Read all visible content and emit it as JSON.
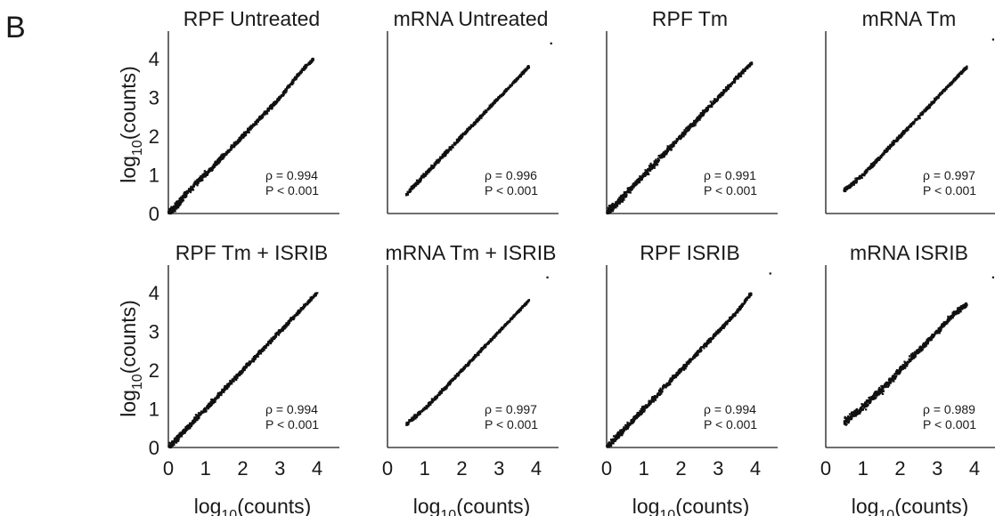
{
  "figure": {
    "panel_label": "B"
  },
  "chart_data": [
    {
      "type": "scatter",
      "title": "RPF Untreated",
      "stats": {
        "rho": "ρ = 0.994",
        "p": "P < 0.001"
      },
      "points": [
        [
          0,
          0
        ],
        [
          0.15,
          0.12
        ],
        [
          0.3,
          0.3
        ],
        [
          0.5,
          0.55
        ],
        [
          1,
          1.02
        ],
        [
          1.5,
          1.5
        ],
        [
          2,
          2
        ],
        [
          2.5,
          2.5
        ],
        [
          3,
          3
        ],
        [
          3.5,
          3.6
        ],
        [
          3.9,
          4.0
        ]
      ],
      "spread": 0.09,
      "outliers": []
    },
    {
      "type": "scatter",
      "title": "mRNA Untreated",
      "stats": {
        "rho": "ρ = 0.996",
        "p": "P < 0.001"
      },
      "points": [
        [
          0.5,
          0.5
        ],
        [
          1,
          1.0
        ],
        [
          1.5,
          1.5
        ],
        [
          2,
          2
        ],
        [
          2.5,
          2.5
        ],
        [
          3,
          3
        ],
        [
          3.5,
          3.5
        ],
        [
          3.8,
          3.8
        ]
      ],
      "spread": 0.07,
      "outliers": [
        [
          4.4,
          4.4
        ]
      ]
    },
    {
      "type": "scatter",
      "title": "RPF Tm",
      "stats": {
        "rho": "ρ = 0.991",
        "p": "P < 0.001"
      },
      "points": [
        [
          0,
          0
        ],
        [
          0.2,
          0.2
        ],
        [
          0.5,
          0.5
        ],
        [
          1,
          1
        ],
        [
          1.5,
          1.5
        ],
        [
          2,
          2
        ],
        [
          2.5,
          2.5
        ],
        [
          3,
          3
        ],
        [
          3.5,
          3.5
        ],
        [
          3.9,
          3.9
        ]
      ],
      "spread": 0.11,
      "outliers": []
    },
    {
      "type": "scatter",
      "title": "mRNA Tm",
      "stats": {
        "rho": "ρ = 0.997",
        "p": "P < 0.001"
      },
      "points": [
        [
          0.5,
          0.6
        ],
        [
          1,
          1
        ],
        [
          1.5,
          1.5
        ],
        [
          2,
          2
        ],
        [
          2.5,
          2.5
        ],
        [
          3,
          3
        ],
        [
          3.5,
          3.5
        ],
        [
          3.8,
          3.8
        ]
      ],
      "spread": 0.07,
      "outliers": [
        [
          4.5,
          4.5
        ]
      ]
    },
    {
      "type": "scatter",
      "title": "RPF Tm + ISRIB",
      "stats": {
        "rho": "ρ = 0.994",
        "p": "P < 0.001"
      },
      "points": [
        [
          0,
          0
        ],
        [
          0.3,
          0.3
        ],
        [
          0.6,
          0.6
        ],
        [
          1,
          1
        ],
        [
          1.5,
          1.5
        ],
        [
          2,
          2
        ],
        [
          2.5,
          2.5
        ],
        [
          3,
          3
        ],
        [
          3.5,
          3.5
        ],
        [
          4,
          4
        ]
      ],
      "spread": 0.09,
      "outliers": []
    },
    {
      "type": "scatter",
      "title": "mRNA Tm + ISRIB",
      "stats": {
        "rho": "ρ = 0.997",
        "p": "P < 0.001"
      },
      "points": [
        [
          0.5,
          0.6
        ],
        [
          1,
          1
        ],
        [
          1.5,
          1.5
        ],
        [
          2,
          2
        ],
        [
          2.5,
          2.5
        ],
        [
          3,
          3
        ],
        [
          3.5,
          3.5
        ],
        [
          3.8,
          3.8
        ]
      ],
      "spread": 0.06,
      "outliers": [
        [
          4.3,
          4.4
        ]
      ]
    },
    {
      "type": "scatter",
      "title": "RPF ISRIB",
      "stats": {
        "rho": "ρ = 0.994",
        "p": "P < 0.001"
      },
      "points": [
        [
          0,
          0
        ],
        [
          0.3,
          0.3
        ],
        [
          0.6,
          0.6
        ],
        [
          1,
          1
        ],
        [
          1.5,
          1.5
        ],
        [
          2,
          2
        ],
        [
          2.5,
          2.5
        ],
        [
          3,
          3
        ],
        [
          3.5,
          3.5
        ],
        [
          3.9,
          4.0
        ]
      ],
      "spread": 0.09,
      "outliers": [
        [
          4.4,
          4.5
        ]
      ]
    },
    {
      "type": "scatter",
      "title": "mRNA ISRIB",
      "stats": {
        "rho": "ρ = 0.989",
        "p": "P < 0.001"
      },
      "points": [
        [
          0.5,
          0.65
        ],
        [
          1,
          1.05
        ],
        [
          1.5,
          1.5
        ],
        [
          2,
          2
        ],
        [
          2.5,
          2.5
        ],
        [
          3,
          3
        ],
        [
          3.5,
          3.5
        ],
        [
          3.8,
          3.7
        ]
      ],
      "spread": 0.13,
      "outliers": [
        [
          4.5,
          4.4
        ]
      ]
    }
  ],
  "axes": {
    "xlabel": {
      "base": "log",
      "sub": "10",
      "rest": "(counts)"
    },
    "ylabel": {
      "base": "log",
      "sub": "10",
      "rest": "(counts)"
    },
    "ticks": [
      "0",
      "1",
      "2",
      "3",
      "4"
    ],
    "xlim": [
      0,
      4.6
    ],
    "ylim": [
      0,
      4.6
    ]
  }
}
